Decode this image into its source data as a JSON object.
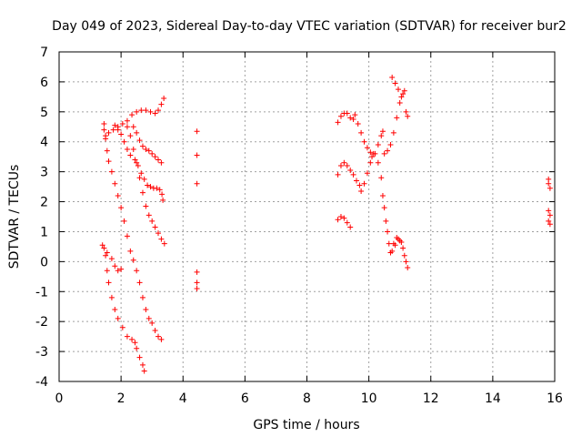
{
  "chart_data": {
    "type": "scatter",
    "title": "Day 049 of 2023, Sidereal Day-to-day VTEC variation (SDTVAR) for receiver bur2",
    "xlabel": "GPS time / hours",
    "ylabel": "SDTVAR / TECUs",
    "xlim": [
      0,
      16
    ],
    "ylim": [
      -4,
      7
    ],
    "xticks": [
      "0",
      "2",
      "4",
      "6",
      "8",
      "10",
      "12",
      "14",
      "16"
    ],
    "yticks": [
      "-4",
      "-3",
      "-2",
      "-1",
      "0",
      "1",
      "2",
      "3",
      "4",
      "5",
      "6",
      "7"
    ],
    "grid": true,
    "marker": "+",
    "marker_color": "#ff0000",
    "series": [
      {
        "points": [
          [
            1.45,
            4.6
          ],
          [
            1.5,
            4.2
          ],
          [
            1.6,
            4.3
          ],
          [
            1.75,
            4.4
          ],
          [
            1.9,
            4.5
          ],
          [
            2.05,
            4.6
          ],
          [
            2.2,
            4.7
          ],
          [
            2.35,
            4.9
          ],
          [
            2.5,
            5.0
          ],
          [
            2.65,
            5.05
          ],
          [
            2.8,
            5.05
          ],
          [
            2.95,
            5.0
          ],
          [
            3.1,
            4.95
          ],
          [
            3.2,
            5.05
          ],
          [
            3.3,
            5.25
          ],
          [
            3.38,
            5.45
          ],
          [
            1.45,
            4.4
          ],
          [
            1.5,
            4.1
          ],
          [
            1.55,
            3.7
          ],
          [
            1.6,
            3.35
          ],
          [
            1.7,
            3.0
          ],
          [
            1.8,
            2.6
          ],
          [
            1.9,
            2.2
          ],
          [
            2.0,
            1.8
          ],
          [
            2.1,
            1.35
          ],
          [
            2.2,
            0.85
          ],
          [
            2.3,
            0.35
          ],
          [
            2.4,
            0.05
          ],
          [
            2.5,
            -0.3
          ],
          [
            2.6,
            -0.7
          ],
          [
            2.7,
            -1.2
          ],
          [
            2.8,
            -1.6
          ],
          [
            2.9,
            -1.9
          ],
          [
            3.0,
            -2.05
          ],
          [
            3.1,
            -2.3
          ],
          [
            3.2,
            -2.5
          ],
          [
            3.3,
            -2.6
          ],
          [
            1.4,
            0.55
          ],
          [
            1.5,
            0.2
          ],
          [
            1.55,
            -0.3
          ],
          [
            1.6,
            -0.7
          ],
          [
            1.7,
            -1.2
          ],
          [
            1.8,
            -1.6
          ],
          [
            1.9,
            -1.9
          ],
          [
            2.05,
            -2.2
          ],
          [
            2.2,
            -2.5
          ],
          [
            2.35,
            -2.6
          ],
          [
            2.45,
            -2.7
          ],
          [
            2.5,
            -2.9
          ],
          [
            2.6,
            -3.2
          ],
          [
            2.7,
            -3.45
          ],
          [
            2.75,
            -3.65
          ],
          [
            1.45,
            0.45
          ],
          [
            1.55,
            0.3
          ],
          [
            1.7,
            0.1
          ],
          [
            1.8,
            -0.15
          ],
          [
            1.9,
            -0.3
          ],
          [
            2.0,
            -0.25
          ],
          [
            1.8,
            4.55
          ],
          [
            1.9,
            4.4
          ],
          [
            2.0,
            4.25
          ],
          [
            2.1,
            4.0
          ],
          [
            2.2,
            3.75
          ],
          [
            2.3,
            3.55
          ],
          [
            2.45,
            3.4
          ],
          [
            2.55,
            3.2
          ],
          [
            2.65,
            2.95
          ],
          [
            2.75,
            2.75
          ],
          [
            2.85,
            2.55
          ],
          [
            2.95,
            2.5
          ],
          [
            3.05,
            2.45
          ],
          [
            3.15,
            2.45
          ],
          [
            3.25,
            2.4
          ],
          [
            3.32,
            2.25
          ],
          [
            3.35,
            2.05
          ],
          [
            2.4,
            4.5
          ],
          [
            2.5,
            4.3
          ],
          [
            2.6,
            4.05
          ],
          [
            2.7,
            3.85
          ],
          [
            2.8,
            3.75
          ],
          [
            2.9,
            3.7
          ],
          [
            3.0,
            3.6
          ],
          [
            3.1,
            3.5
          ],
          [
            3.2,
            3.4
          ],
          [
            3.3,
            3.3
          ],
          [
            2.2,
            4.5
          ],
          [
            2.3,
            4.2
          ],
          [
            2.4,
            3.75
          ],
          [
            2.5,
            3.3
          ],
          [
            2.6,
            2.8
          ],
          [
            2.7,
            2.3
          ],
          [
            2.8,
            1.85
          ],
          [
            2.9,
            1.55
          ],
          [
            3.0,
            1.35
          ],
          [
            3.1,
            1.15
          ],
          [
            3.2,
            0.95
          ],
          [
            3.3,
            0.75
          ],
          [
            3.4,
            0.6
          ],
          [
            4.45,
            4.35
          ],
          [
            4.45,
            3.55
          ],
          [
            4.45,
            2.6
          ],
          [
            4.45,
            -0.35
          ],
          [
            4.45,
            -0.7
          ],
          [
            4.45,
            -0.9
          ],
          [
            9.0,
            2.9
          ],
          [
            9.1,
            3.2
          ],
          [
            9.2,
            3.3
          ],
          [
            9.3,
            3.2
          ],
          [
            9.4,
            3.05
          ],
          [
            9.5,
            2.9
          ],
          [
            9.6,
            2.7
          ],
          [
            9.7,
            2.55
          ],
          [
            9.75,
            2.35
          ],
          [
            9.85,
            2.6
          ],
          [
            9.95,
            2.95
          ],
          [
            10.05,
            3.3
          ],
          [
            10.15,
            3.6
          ],
          [
            9.0,
            4.65
          ],
          [
            9.1,
            4.85
          ],
          [
            9.2,
            4.95
          ],
          [
            9.3,
            4.95
          ],
          [
            9.4,
            4.8
          ],
          [
            9.5,
            4.75
          ],
          [
            9.55,
            4.9
          ],
          [
            9.65,
            4.6
          ],
          [
            9.75,
            4.3
          ],
          [
            9.85,
            4.0
          ],
          [
            9.95,
            3.8
          ],
          [
            10.05,
            3.65
          ],
          [
            10.1,
            3.5
          ],
          [
            10.2,
            3.6
          ],
          [
            10.3,
            3.9
          ],
          [
            10.4,
            4.2
          ],
          [
            10.45,
            4.35
          ],
          [
            9.0,
            1.4
          ],
          [
            9.1,
            1.5
          ],
          [
            9.2,
            1.45
          ],
          [
            9.3,
            1.3
          ],
          [
            9.4,
            1.15
          ],
          [
            10.3,
            3.3
          ],
          [
            10.4,
            2.8
          ],
          [
            10.45,
            2.2
          ],
          [
            10.5,
            1.8
          ],
          [
            10.55,
            1.35
          ],
          [
            10.6,
            1.0
          ],
          [
            10.65,
            0.6
          ],
          [
            10.75,
            0.35
          ],
          [
            10.85,
            0.55
          ],
          [
            10.95,
            0.75
          ],
          [
            11.05,
            0.65
          ],
          [
            11.1,
            0.45
          ],
          [
            11.15,
            0.2
          ],
          [
            11.2,
            0.0
          ],
          [
            11.25,
            -0.2
          ],
          [
            10.5,
            3.6
          ],
          [
            10.6,
            3.7
          ],
          [
            10.7,
            3.9
          ],
          [
            10.8,
            4.3
          ],
          [
            10.9,
            4.8
          ],
          [
            11.0,
            5.3
          ],
          [
            11.1,
            5.6
          ],
          [
            11.2,
            5.0
          ],
          [
            11.25,
            4.85
          ],
          [
            10.75,
            6.15
          ],
          [
            10.85,
            5.95
          ],
          [
            10.95,
            5.75
          ],
          [
            11.05,
            5.5
          ],
          [
            11.15,
            5.7
          ],
          [
            10.7,
            0.3
          ],
          [
            10.8,
            0.6
          ],
          [
            10.9,
            0.8
          ],
          [
            11.0,
            0.7
          ],
          [
            15.8,
            2.75
          ],
          [
            15.8,
            2.6
          ],
          [
            15.85,
            2.45
          ],
          [
            15.8,
            1.7
          ],
          [
            15.85,
            1.55
          ],
          [
            15.8,
            1.35
          ],
          [
            15.85,
            1.25
          ]
        ]
      }
    ]
  }
}
